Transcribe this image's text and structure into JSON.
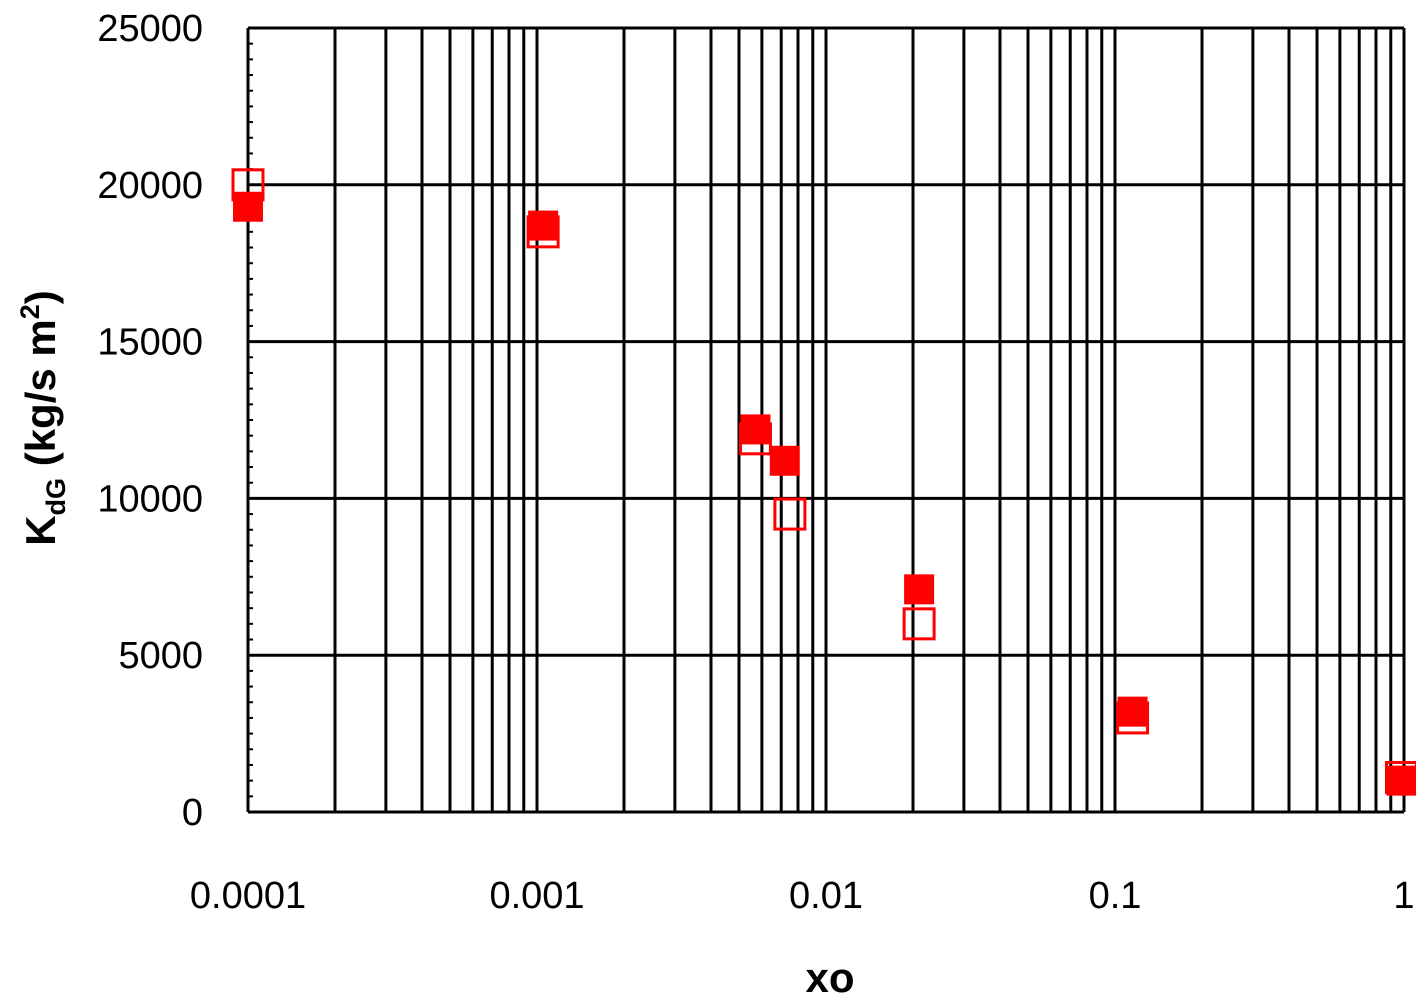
{
  "chart_data": {
    "type": "scatter",
    "title": "",
    "xlabel": "xo",
    "ylabel_main": "K",
    "ylabel_sub": "dG",
    "ylabel_unit_pre": " (kg/s m",
    "ylabel_unit_sup": "2",
    "ylabel_unit_post": ")",
    "x_scale": "log",
    "xlim": [
      0.0001,
      1
    ],
    "ylim": [
      0,
      25000
    ],
    "x_ticks": [
      "0.0001",
      "0.001",
      "0.01",
      "0.1",
      "1"
    ],
    "y_ticks": [
      "0",
      "5000",
      "10000",
      "15000",
      "20000",
      "25000"
    ],
    "grid": true,
    "series": [
      {
        "marker": "filled-square",
        "color": "#ff0000",
        "points": [
          {
            "x": 0.0001,
            "y": 19300
          },
          {
            "x": 0.00105,
            "y": 18700
          },
          {
            "x": 0.0057,
            "y": 12200
          },
          {
            "x": 0.0072,
            "y": 11200
          },
          {
            "x": 0.021,
            "y": 7100
          },
          {
            "x": 0.115,
            "y": 3200
          },
          {
            "x": 0.98,
            "y": 1000
          }
        ]
      },
      {
        "marker": "open-square",
        "color": "#ff0000",
        "points": [
          {
            "x": 0.0001,
            "y": 20000
          },
          {
            "x": 0.00105,
            "y": 18500
          },
          {
            "x": 0.0057,
            "y": 11900
          },
          {
            "x": 0.0075,
            "y": 9500
          },
          {
            "x": 0.021,
            "y": 6000
          },
          {
            "x": 0.115,
            "y": 3000
          },
          {
            "x": 0.98,
            "y": 1100
          }
        ]
      }
    ]
  }
}
